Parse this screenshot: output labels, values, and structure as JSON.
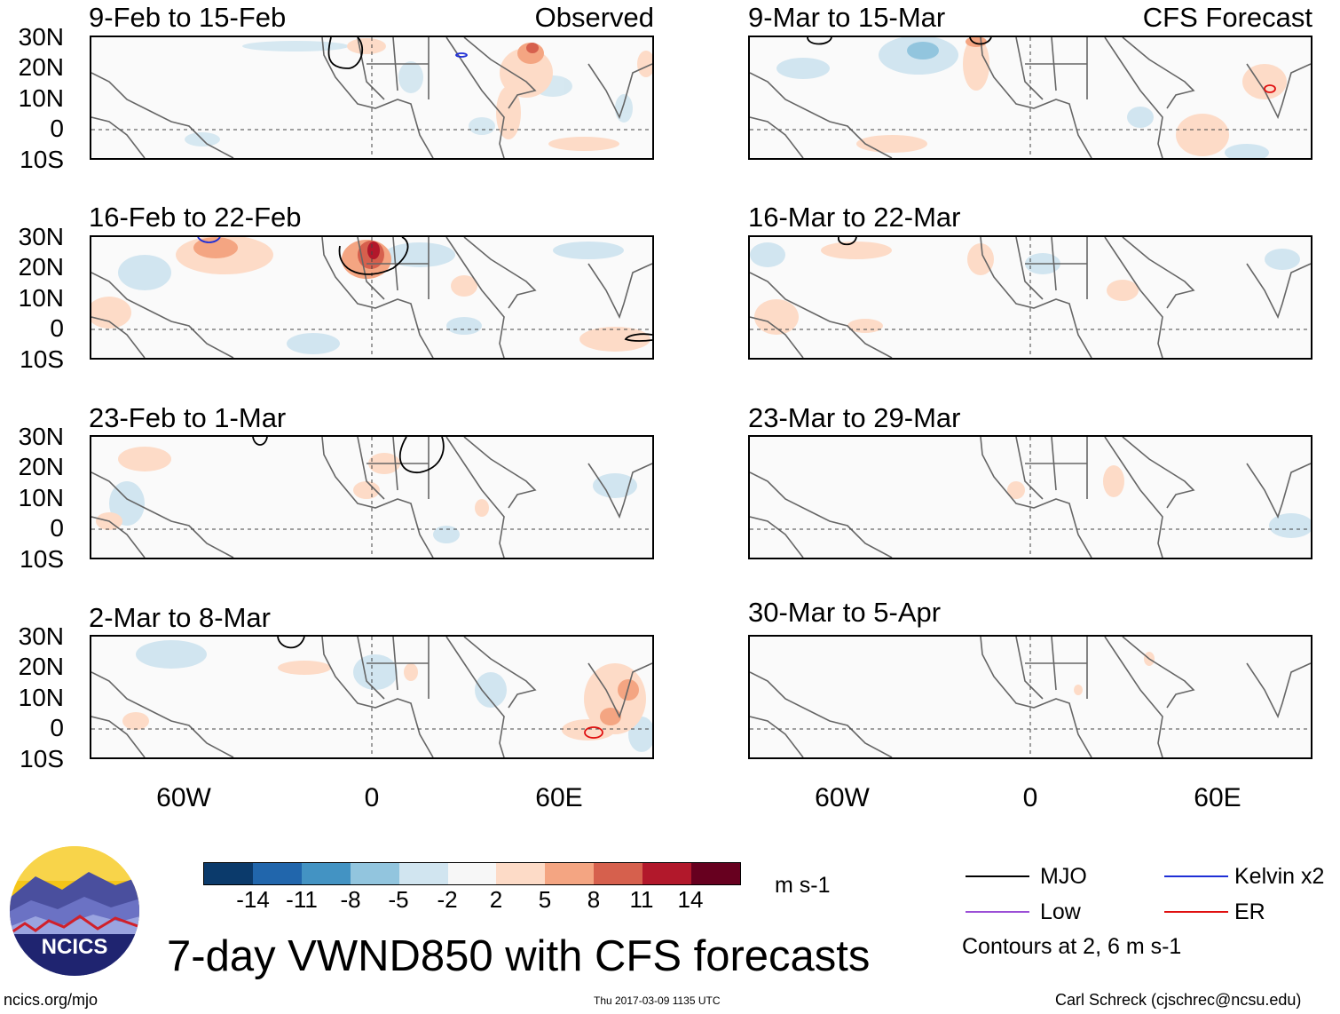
{
  "panels": [
    {
      "title": "9-Feb to 15-Feb",
      "tag": "Observed"
    },
    {
      "title": "16-Feb to 22-Feb",
      "tag": ""
    },
    {
      "title": "23-Feb to 1-Mar",
      "tag": ""
    },
    {
      "title": "2-Mar to 8-Mar",
      "tag": ""
    },
    {
      "title": "9-Mar to 15-Mar",
      "tag": "CFS Forecast"
    },
    {
      "title": "16-Mar to 22-Mar",
      "tag": ""
    },
    {
      "title": "23-Mar to 29-Mar",
      "tag": ""
    },
    {
      "title": "30-Mar to 5-Apr",
      "tag": ""
    }
  ],
  "lat_labels": [
    "30N",
    "20N",
    "10N",
    "0",
    "10S"
  ],
  "lon_labels": [
    "60W",
    "0",
    "60E"
  ],
  "colorbar": {
    "labels": [
      "-14",
      "-11",
      "-8",
      "-5",
      "-2",
      "2",
      "5",
      "8",
      "11",
      "14"
    ],
    "colors": [
      "#0b3a6b",
      "#2166ac",
      "#4393c3",
      "#92c5de",
      "#d1e5f0",
      "#f7f7f7",
      "#fddbc7",
      "#f4a582",
      "#d6604d",
      "#b2182b",
      "#67001f"
    ],
    "units": "m s-1"
  },
  "legend": {
    "items": [
      {
        "label": "MJO",
        "color": "#000000"
      },
      {
        "label": "Kelvin x2",
        "color": "#1f2fd6"
      },
      {
        "label": "Low",
        "color": "#9b4fd6"
      },
      {
        "label": "ER",
        "color": "#e01010"
      }
    ],
    "note": "Contours at 2, 6 m s-1"
  },
  "logo": {
    "text": "NCICS"
  },
  "main_title": "7-day VWND850 with CFS forecasts",
  "footer": {
    "left": "ncics.org/mjo",
    "center": "Thu 2017-03-09 1135 UTC",
    "right": "Carl Schreck (cjschrec@ncsu.edu)"
  }
}
